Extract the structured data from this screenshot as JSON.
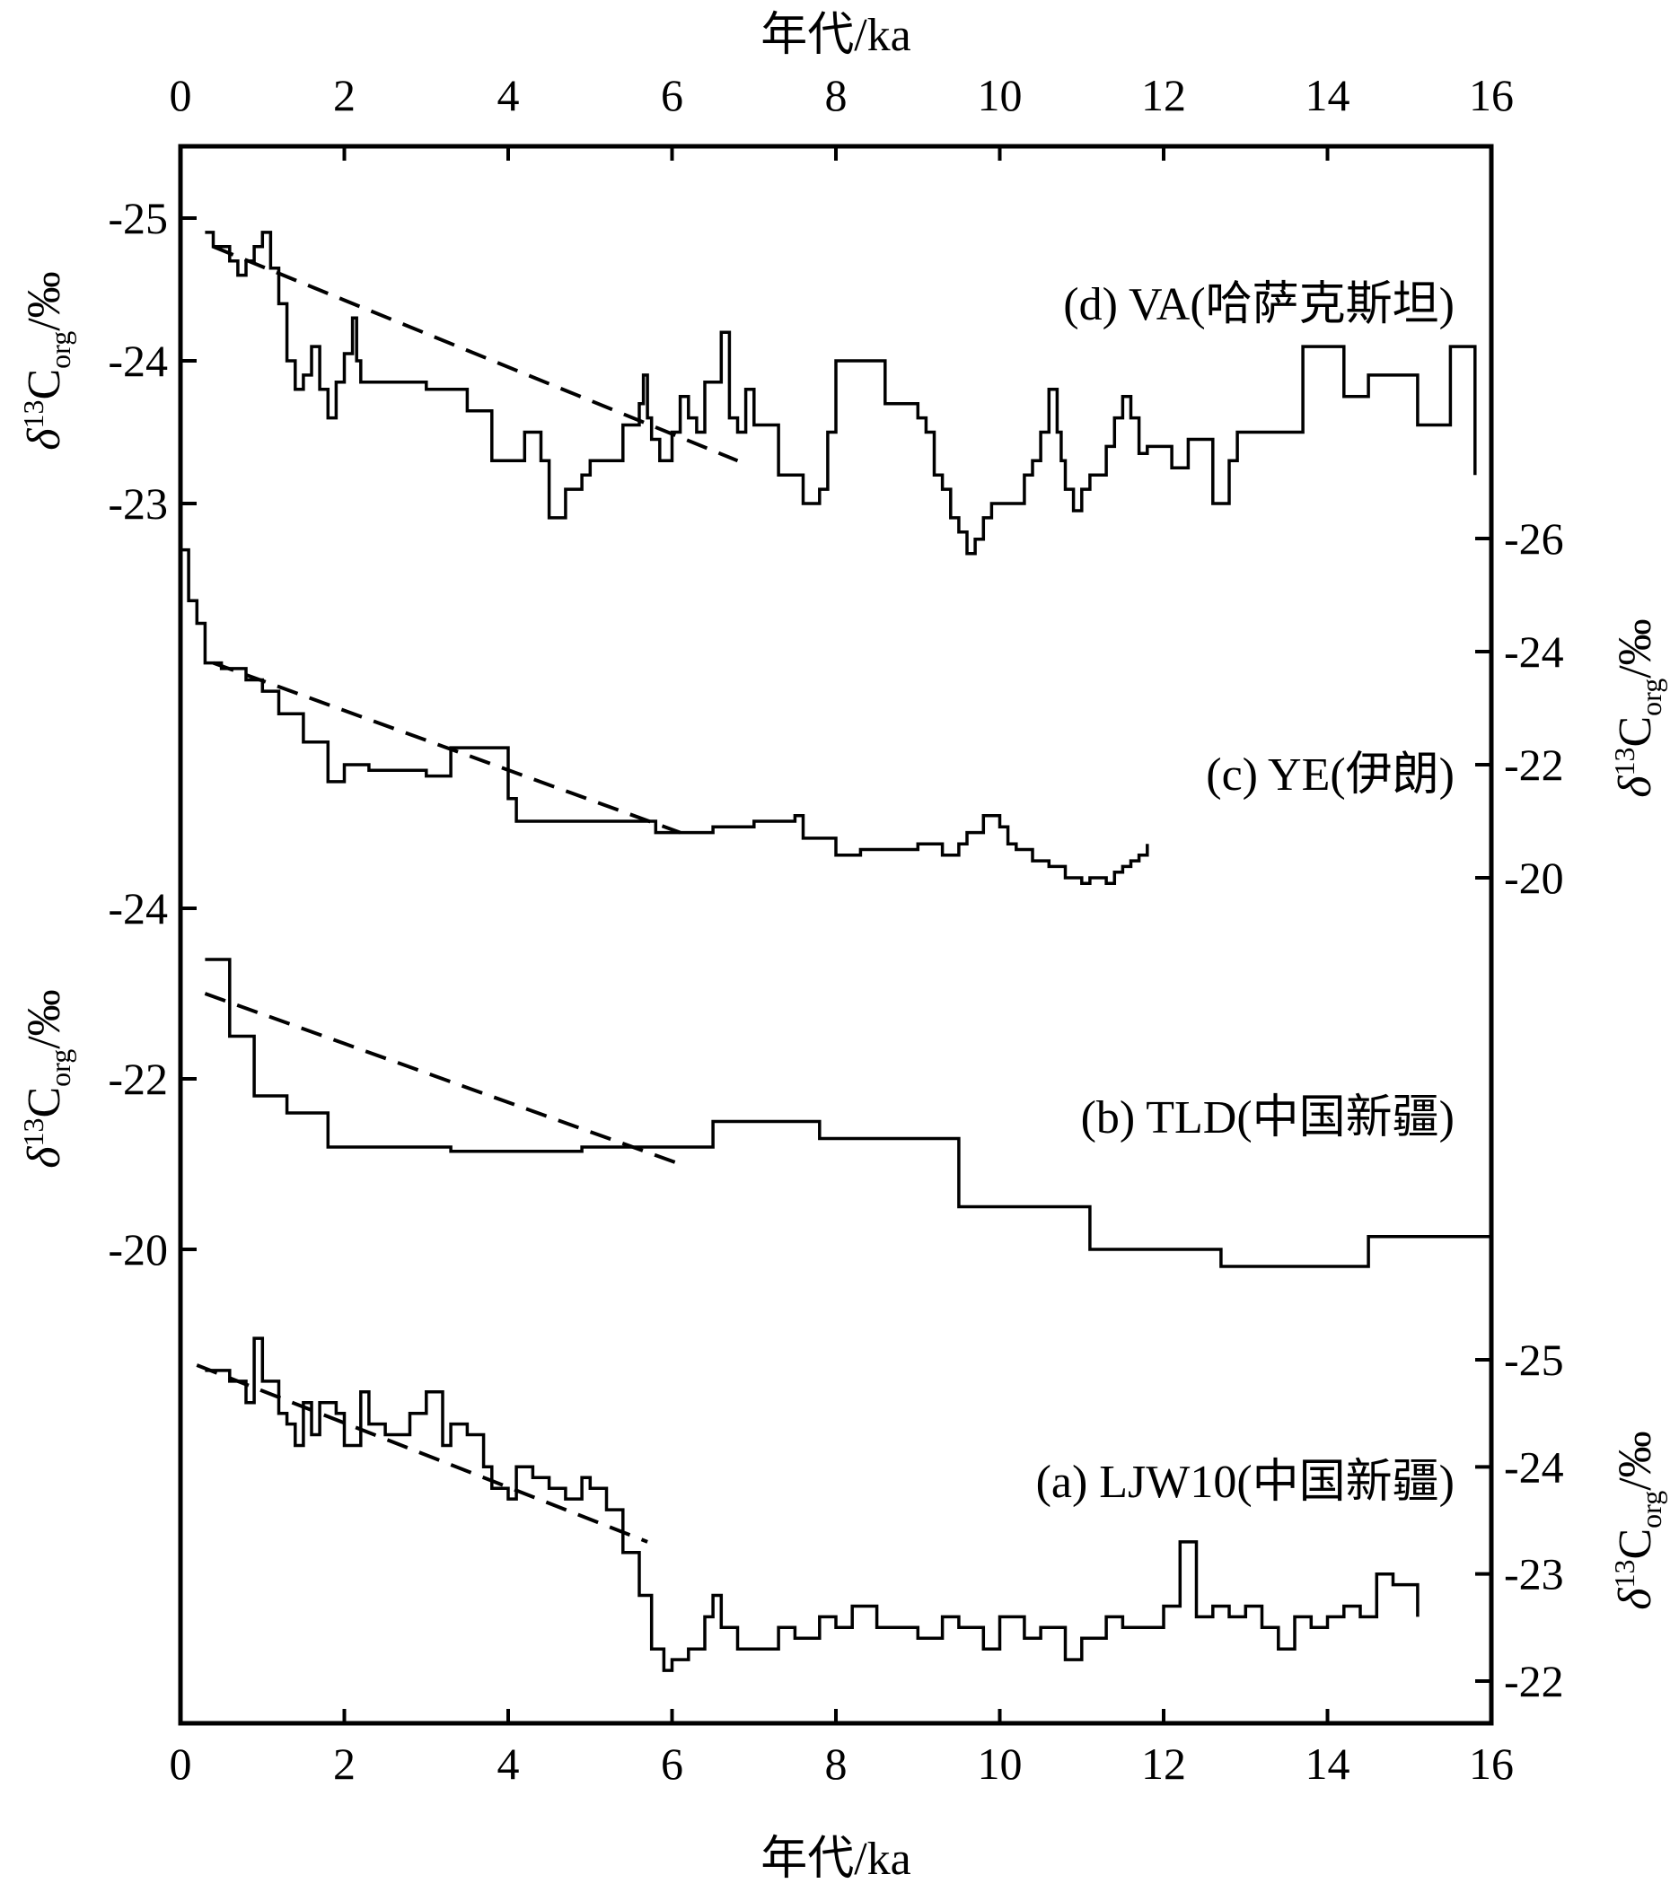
{
  "chart_data": {
    "type": "line",
    "x_axis": {
      "label": "年代/ka",
      "range": [
        0,
        16
      ],
      "ticks": [
        0,
        2,
        4,
        6,
        8,
        10,
        12,
        14,
        16
      ],
      "tick_labels": [
        "0",
        "2",
        "4",
        "6",
        "8",
        "10",
        "12",
        "14",
        "16"
      ],
      "positions": [
        "top",
        "bottom"
      ]
    },
    "y_axes": [
      {
        "id": "d",
        "side": "left",
        "label": {
          "sym": "δ",
          "sup": "13",
          "main": "C",
          "sub": "org",
          "tail": "/‰"
        },
        "range": [
          -25.5,
          -22.5
        ],
        "ticks": [
          -25,
          -24,
          -23
        ],
        "tick_labels": [
          "-25",
          "-24",
          "-23"
        ],
        "reversed": true
      },
      {
        "id": "c",
        "side": "right",
        "label": {
          "sym": "δ",
          "sup": "13",
          "main": "C",
          "sub": "org",
          "tail": "/‰"
        },
        "range": [
          -27,
          -19
        ],
        "ticks": [
          -26,
          -24,
          -22,
          -20
        ],
        "tick_labels": [
          "-26",
          "-24",
          "-22",
          "-20"
        ],
        "reversed": true
      },
      {
        "id": "b",
        "side": "left",
        "label": {
          "sym": "δ",
          "sup": "13",
          "main": "C",
          "sub": "org",
          "tail": "/‰"
        },
        "range": [
          -25,
          -19
        ],
        "ticks": [
          -24,
          -22,
          -20
        ],
        "tick_labels": [
          "-24",
          "-22",
          "-20"
        ],
        "reversed": true
      },
      {
        "id": "a",
        "side": "right",
        "label": {
          "sym": "δ",
          "sup": "13",
          "main": "C",
          "sub": "org",
          "tail": "/‰"
        },
        "range": [
          -26,
          -21.5
        ],
        "ticks": [
          -25,
          -24,
          -23,
          -22
        ],
        "tick_labels": [
          "-25",
          "-24",
          "-23",
          "-22"
        ],
        "reversed": true
      }
    ],
    "grid": false,
    "series": [
      {
        "id": "d",
        "name": "(d) VA(哈萨克斯坦)",
        "axis": "d",
        "style": "step",
        "x": [
          0.3,
          0.4,
          0.6,
          0.7,
          0.8,
          0.9,
          1.0,
          1.1,
          1.2,
          1.3,
          1.4,
          1.5,
          1.6,
          1.7,
          1.8,
          1.9,
          2.0,
          2.1,
          2.15,
          2.2,
          2.4,
          3.0,
          3.5,
          3.8,
          4.2,
          4.4,
          4.5,
          4.7,
          4.9,
          5.0,
          5.4,
          5.6,
          5.65,
          5.7,
          5.75,
          5.85,
          6.0,
          6.1,
          6.2,
          6.3,
          6.4,
          6.6,
          6.7,
          6.8,
          6.9,
          7.0,
          7.3,
          7.6,
          7.8,
          7.9,
          8.0,
          8.2,
          8.6,
          9.0,
          9.1,
          9.2,
          9.3,
          9.4,
          9.5,
          9.6,
          9.7,
          9.8,
          9.9,
          10.1,
          10.3,
          10.4,
          10.5,
          10.6,
          10.7,
          10.75,
          10.8,
          10.9,
          11.0,
          11.1,
          11.3,
          11.4,
          11.5,
          11.6,
          11.7,
          11.8,
          12.1,
          12.3,
          12.6,
          12.8,
          12.9,
          13.3,
          13.7,
          14.1,
          14.2,
          14.5,
          14.8,
          15.1,
          15.5,
          15.8
        ],
        "y": [
          -24.9,
          -24.8,
          -24.7,
          -24.6,
          -24.7,
          -24.8,
          -24.9,
          -24.65,
          -24.4,
          -24.0,
          -23.8,
          -23.9,
          -24.1,
          -23.8,
          -23.6,
          -23.85,
          -24.05,
          -24.3,
          -24.0,
          -23.85,
          -23.85,
          -23.8,
          -23.65,
          -23.3,
          -23.5,
          -23.3,
          -22.9,
          -23.1,
          -23.2,
          -23.3,
          -23.55,
          -23.7,
          -23.9,
          -23.6,
          -23.45,
          -23.3,
          -23.5,
          -23.75,
          -23.6,
          -23.5,
          -23.85,
          -24.2,
          -23.6,
          -23.5,
          -23.8,
          -23.55,
          -23.2,
          -23.0,
          -23.1,
          -23.5,
          -24.0,
          -24.0,
          -23.7,
          -23.6,
          -23.5,
          -23.2,
          -23.1,
          -22.9,
          -22.8,
          -22.65,
          -22.75,
          -22.9,
          -23.0,
          -23.0,
          -23.2,
          -23.3,
          -23.5,
          -23.8,
          -23.5,
          -23.3,
          -23.1,
          -22.95,
          -23.1,
          -23.2,
          -23.4,
          -23.6,
          -23.75,
          -23.6,
          -23.35,
          -23.4,
          -23.25,
          -23.45,
          -23.0,
          -23.3,
          -23.5,
          -23.5,
          -24.1,
          -24.1,
          -23.75,
          -23.9,
          -23.9,
          -23.55,
          -24.1,
          -23.2
        ]
      },
      {
        "id": "c",
        "name": "(c) YE(伊朗)",
        "axis": "c",
        "style": "step",
        "x": [
          0.0,
          0.1,
          0.2,
          0.3,
          0.5,
          0.8,
          1.0,
          1.2,
          1.5,
          1.8,
          2.0,
          2.3,
          3.0,
          3.3,
          4.0,
          4.1,
          5.0,
          5.8,
          6.5,
          7.0,
          7.5,
          7.6,
          8.0,
          8.3,
          8.5,
          8.8,
          9.0,
          9.3,
          9.5,
          9.6,
          9.8,
          10.0,
          10.1,
          10.2,
          10.4,
          10.6,
          10.8,
          11.0,
          11.1,
          11.2,
          11.3,
          11.4,
          11.5,
          11.6,
          11.7,
          11.8
        ],
        "y": [
          -25.8,
          -24.9,
          -24.5,
          -23.8,
          -23.7,
          -23.5,
          -23.3,
          -22.9,
          -22.4,
          -21.7,
          -22.0,
          -21.9,
          -21.8,
          -22.3,
          -21.4,
          -21.0,
          -21.0,
          -20.8,
          -20.9,
          -21.0,
          -21.1,
          -20.7,
          -20.4,
          -20.5,
          -20.5,
          -20.5,
          -20.6,
          -20.4,
          -20.6,
          -20.8,
          -21.1,
          -20.9,
          -20.6,
          -20.5,
          -20.3,
          -20.2,
          -20.0,
          -19.9,
          -20.0,
          -20.0,
          -19.9,
          -20.1,
          -20.2,
          -20.3,
          -20.4,
          -20.6
        ]
      },
      {
        "id": "b",
        "name": "(b) TLD(中国新疆)",
        "axis": "b",
        "style": "step",
        "x": [
          0.3,
          0.6,
          0.9,
          1.3,
          1.8,
          3.3,
          4.9,
          6.5,
          7.8,
          9.5,
          11.1,
          12.7,
          14.5,
          16.0
        ],
        "y": [
          -23.4,
          -22.5,
          -21.8,
          -21.6,
          -21.2,
          -21.15,
          -21.2,
          -21.5,
          -21.3,
          -20.5,
          -20.0,
          -19.8,
          -20.15,
          -20.15
        ]
      },
      {
        "id": "a",
        "name": "(a) LJW10(中国新疆)",
        "axis": "a",
        "style": "step",
        "x": [
          0.3,
          0.6,
          0.8,
          0.9,
          1.0,
          1.2,
          1.3,
          1.4,
          1.5,
          1.6,
          1.7,
          1.9,
          2.0,
          2.2,
          2.3,
          2.5,
          2.8,
          3.0,
          3.2,
          3.3,
          3.5,
          3.7,
          3.8,
          4.0,
          4.1,
          4.3,
          4.5,
          4.7,
          4.9,
          5.0,
          5.2,
          5.4,
          5.6,
          5.75,
          5.9,
          6.0,
          6.2,
          6.4,
          6.5,
          6.6,
          6.8,
          7.0,
          7.3,
          7.5,
          7.8,
          8.0,
          8.2,
          8.5,
          8.8,
          9.0,
          9.3,
          9.5,
          9.8,
          10.0,
          10.3,
          10.5,
          10.8,
          11.0,
          11.3,
          11.5,
          11.8,
          12.0,
          12.2,
          12.4,
          12.6,
          12.8,
          13.0,
          13.2,
          13.4,
          13.6,
          13.8,
          14.0,
          14.2,
          14.4,
          14.6,
          14.8,
          15.0,
          15.1
        ],
        "y": [
          -24.9,
          -24.8,
          -24.6,
          -25.2,
          -24.8,
          -24.5,
          -24.4,
          -24.2,
          -24.6,
          -24.3,
          -24.6,
          -24.5,
          -24.2,
          -24.7,
          -24.4,
          -24.3,
          -24.5,
          -24.7,
          -24.2,
          -24.4,
          -24.3,
          -24.0,
          -23.8,
          -23.7,
          -24.0,
          -23.9,
          -23.8,
          -23.7,
          -23.9,
          -23.8,
          -23.6,
          -23.2,
          -22.8,
          -22.3,
          -22.1,
          -22.2,
          -22.3,
          -22.6,
          -22.8,
          -22.5,
          -22.3,
          -22.3,
          -22.5,
          -22.4,
          -22.6,
          -22.5,
          -22.7,
          -22.5,
          -22.5,
          -22.4,
          -22.6,
          -22.5,
          -22.3,
          -22.6,
          -22.4,
          -22.5,
          -22.2,
          -22.4,
          -22.6,
          -22.5,
          -22.5,
          -22.7,
          -23.3,
          -22.6,
          -22.7,
          -22.6,
          -22.7,
          -22.5,
          -22.3,
          -22.6,
          -22.5,
          -22.6,
          -22.7,
          -22.6,
          -23.0,
          -22.9,
          -22.9,
          -22.6
        ]
      }
    ],
    "trend_lines": [
      {
        "series": "d",
        "x": [
          0.4,
          6.8
        ],
        "y": [
          -24.8,
          -23.3
        ],
        "style": "dashed"
      },
      {
        "series": "c",
        "x": [
          0.4,
          6.1
        ],
        "y": [
          -23.8,
          -20.8
        ],
        "style": "dashed"
      },
      {
        "series": "b",
        "x": [
          0.3,
          6.1
        ],
        "y": [
          -23.0,
          -21.0
        ],
        "style": "dashed"
      },
      {
        "series": "a",
        "x": [
          0.2,
          5.7
        ],
        "y": [
          -24.95,
          -23.3
        ],
        "style": "dashed"
      }
    ]
  }
}
